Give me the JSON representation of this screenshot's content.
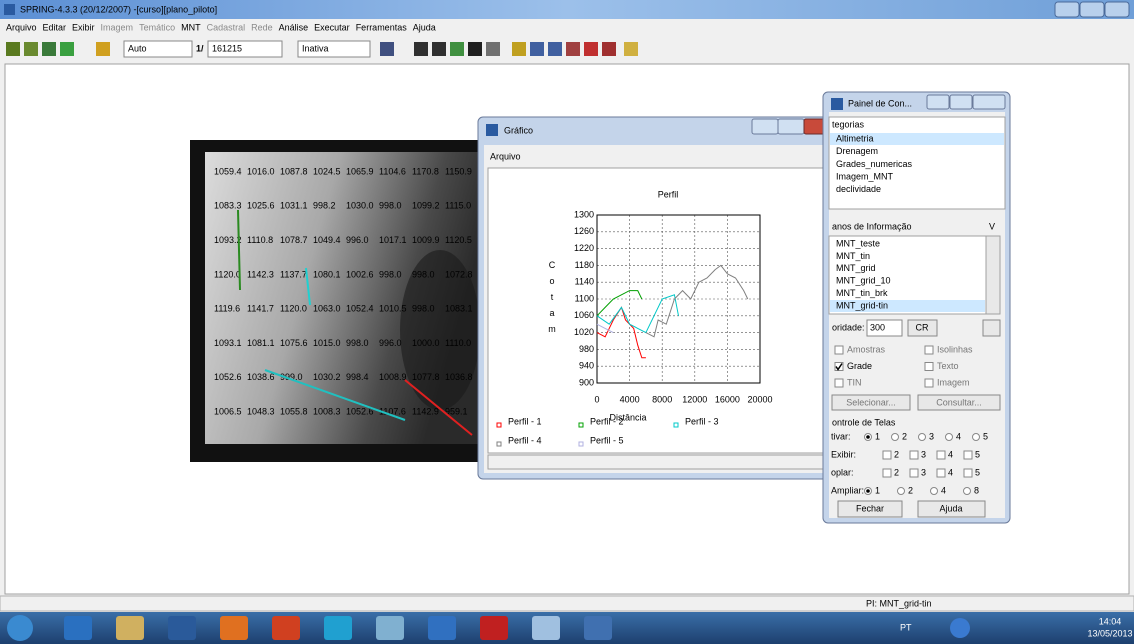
{
  "window": {
    "title": "SPRING-4.3.3 (20/12/2007) -[curso][plano_piloto]"
  },
  "menu": [
    {
      "label": "Arquivo",
      "enabled": true
    },
    {
      "label": "Editar",
      "enabled": true
    },
    {
      "label": "Exibir",
      "enabled": true
    },
    {
      "label": "Imagem",
      "enabled": false
    },
    {
      "label": "Temático",
      "enabled": false
    },
    {
      "label": "MNT",
      "enabled": true
    },
    {
      "label": "Cadastral",
      "enabled": false
    },
    {
      "label": "Rede",
      "enabled": false
    },
    {
      "label": "Análise",
      "enabled": true
    },
    {
      "label": "Executar",
      "enabled": true
    },
    {
      "label": "Ferramentas",
      "enabled": true
    },
    {
      "label": "Ajuda",
      "enabled": true
    }
  ],
  "toolbar": {
    "mode": "Auto",
    "scale_prefix": "1/",
    "scale": "161215",
    "state": "Inativa"
  },
  "map": {
    "grid": [
      [
        "1059.4",
        "1016.0",
        "1087.8",
        "1024.5",
        "1065.9",
        "1104.6",
        "1170.8",
        "1150.9"
      ],
      [
        "1083.3",
        "1025.6",
        "1031.1",
        "998.2",
        "1030.0",
        "998.0",
        "1099.2",
        "1115.0"
      ],
      [
        "1093.2",
        "1110.8",
        "1078.7",
        "1049.4",
        "996.0",
        "1017.1",
        "1009.9",
        "1120.5"
      ],
      [
        "1120.0",
        "1142.3",
        "1137.7",
        "1080.1",
        "1002.6",
        "998.0",
        "998.0",
        "1072.8"
      ],
      [
        "1119.6",
        "1141.7",
        "1120.0",
        "1063.0",
        "1052.4",
        "1010.5",
        "998.0",
        "1083.1"
      ],
      [
        "1093.1",
        "1081.1",
        "1075.6",
        "1015.0",
        "998.0",
        "996.0",
        "1000.0",
        "1110.0"
      ],
      [
        "1052.6",
        "1038.6",
        "999.0",
        "1030.2",
        "998.4",
        "1008.9",
        "1077.8",
        "1036.8"
      ],
      [
        "1006.5",
        "1048.3",
        "1055.8",
        "1008.3",
        "1052.6",
        "1107.6",
        "1142.9",
        "959.1"
      ]
    ]
  },
  "grafico": {
    "title": "Gráfico",
    "menu": "Arquivo"
  },
  "chart_data": {
    "type": "line",
    "title": "Perfil",
    "xlabel": "Distância",
    "ylabel": "Cota m",
    "xlim": [
      0,
      20000
    ],
    "ylim": [
      900,
      1300
    ],
    "xticks": [
      0,
      4000,
      8000,
      12000,
      16000,
      20000
    ],
    "yticks": [
      900,
      940,
      980,
      1020,
      1060,
      1100,
      1140,
      1180,
      1220,
      1260,
      1300
    ],
    "grid": true,
    "series": [
      {
        "name": "Perfil - 1",
        "color": "#ff0000",
        "x": [
          0,
          1000,
          2000,
          3000,
          3500,
          4500,
          5000,
          5500,
          6000
        ],
        "values": [
          1020,
          1010,
          1050,
          1080,
          1050,
          1030,
          990,
          960,
          960
        ]
      },
      {
        "name": "Perfil - 2",
        "color": "#00a000",
        "x": [
          0,
          1000,
          2000,
          3000,
          4000,
          5000,
          5500
        ],
        "values": [
          1060,
          1080,
          1100,
          1110,
          1120,
          1120,
          1100
        ]
      },
      {
        "name": "Perfil - 3",
        "color": "#00c8c8",
        "x": [
          0,
          1500,
          3000,
          4000,
          5000,
          6000,
          7000,
          8000,
          9500,
          10000
        ],
        "values": [
          1060,
          1040,
          1080,
          1040,
          1030,
          1020,
          1060,
          1100,
          1110,
          1060
        ]
      },
      {
        "name": "Perfil - 4",
        "color": "#808080",
        "x": [
          6000,
          7000,
          7500,
          8500,
          9500,
          10500,
          11500,
          12500,
          13500,
          14500,
          15200,
          16000,
          17000,
          18000,
          18500
        ],
        "values": [
          1020,
          1010,
          1050,
          1040,
          1100,
          1120,
          1100,
          1140,
          1150,
          1170,
          1180,
          1160,
          1150,
          1120,
          1100
        ]
      },
      {
        "name": "Perfil - 5",
        "color": "#b0b0e0",
        "x": [
          0,
          1000,
          2000
        ],
        "values": [
          1040,
          1030,
          1020
        ]
      }
    ]
  },
  "painel": {
    "title": "Painel de Con...",
    "categorias_label": "tegorias",
    "categorias": [
      "Altimetria",
      "Drenagem",
      "Grades_numericas",
      "Imagem_MNT",
      "declividade"
    ],
    "categorias_selected": 0,
    "planos_label": "anos de Informação",
    "planos_button": "V",
    "planos": [
      "MNT_teste",
      "MNT_tin",
      "MNT_grid",
      "MNT_grid_10",
      "MNT_tin_brk",
      "MNT_grid-tin"
    ],
    "planos_selected": 5,
    "prioridade_label": "oridade:",
    "prioridade": "300",
    "cr": "CR",
    "options": [
      {
        "label": "Amostras",
        "checked": false
      },
      {
        "label": "Isolinhas",
        "checked": false
      },
      {
        "label": "Grade",
        "checked": true
      },
      {
        "label": "Texto",
        "checked": false
      },
      {
        "label": "TIN",
        "checked": false
      },
      {
        "label": "Imagem",
        "checked": false
      }
    ],
    "selecionar": "Selecionar...",
    "consultar": "Consultar...",
    "controle_label": "ontrole de Telas",
    "rows": [
      {
        "label": "tivar:",
        "kind": "radio",
        "items": [
          "1",
          "2",
          "3",
          "4",
          "5"
        ],
        "selected": 0
      },
      {
        "label": "Exibir:",
        "kind": "check",
        "items": [
          "2",
          "3",
          "4",
          "5"
        ]
      },
      {
        "label": "oplar:",
        "kind": "check",
        "items": [
          "2",
          "3",
          "4",
          "5"
        ]
      },
      {
        "label": "Ampliar:",
        "kind": "radio",
        "items": [
          "1",
          "2",
          "4",
          "8"
        ],
        "selected": 0
      }
    ],
    "fechar": "Fechar",
    "ajuda": "Ajuda"
  },
  "statusbar": {
    "text": "PI: MNT_grid-tin"
  },
  "taskbar": {
    "language": "PT",
    "time": "14:04",
    "date": "13/05/2013"
  }
}
